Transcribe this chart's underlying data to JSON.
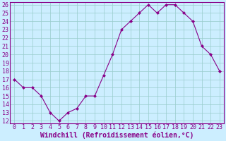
{
  "x": [
    0,
    1,
    2,
    3,
    4,
    5,
    6,
    7,
    8,
    9,
    10,
    11,
    12,
    13,
    14,
    15,
    16,
    17,
    18,
    19,
    20,
    21,
    22,
    23
  ],
  "y": [
    17,
    16,
    16,
    15,
    13,
    12,
    13,
    13.5,
    15,
    15,
    17.5,
    20,
    23,
    24,
    25,
    26,
    25,
    26,
    26,
    25,
    24,
    21,
    20,
    18
  ],
  "line_color": "#880088",
  "marker_color": "#880088",
  "bg_color": "#cceeff",
  "grid_color": "#99cccc",
  "xlabel": "Windchill (Refroidissement éolien,°C)",
  "ylim": [
    12,
    26
  ],
  "xlim": [
    -0.5,
    23.5
  ],
  "yticks": [
    12,
    13,
    14,
    15,
    16,
    17,
    18,
    19,
    20,
    21,
    22,
    23,
    24,
    25,
    26
  ],
  "xticks": [
    0,
    1,
    2,
    3,
    4,
    5,
    6,
    7,
    8,
    9,
    10,
    11,
    12,
    13,
    14,
    15,
    16,
    17,
    18,
    19,
    20,
    21,
    22,
    23
  ],
  "xlabel_color": "#880088",
  "tick_color": "#880088",
  "axis_spine_color": "#880088",
  "font_size": 6.0,
  "xlabel_font_size": 7.0
}
